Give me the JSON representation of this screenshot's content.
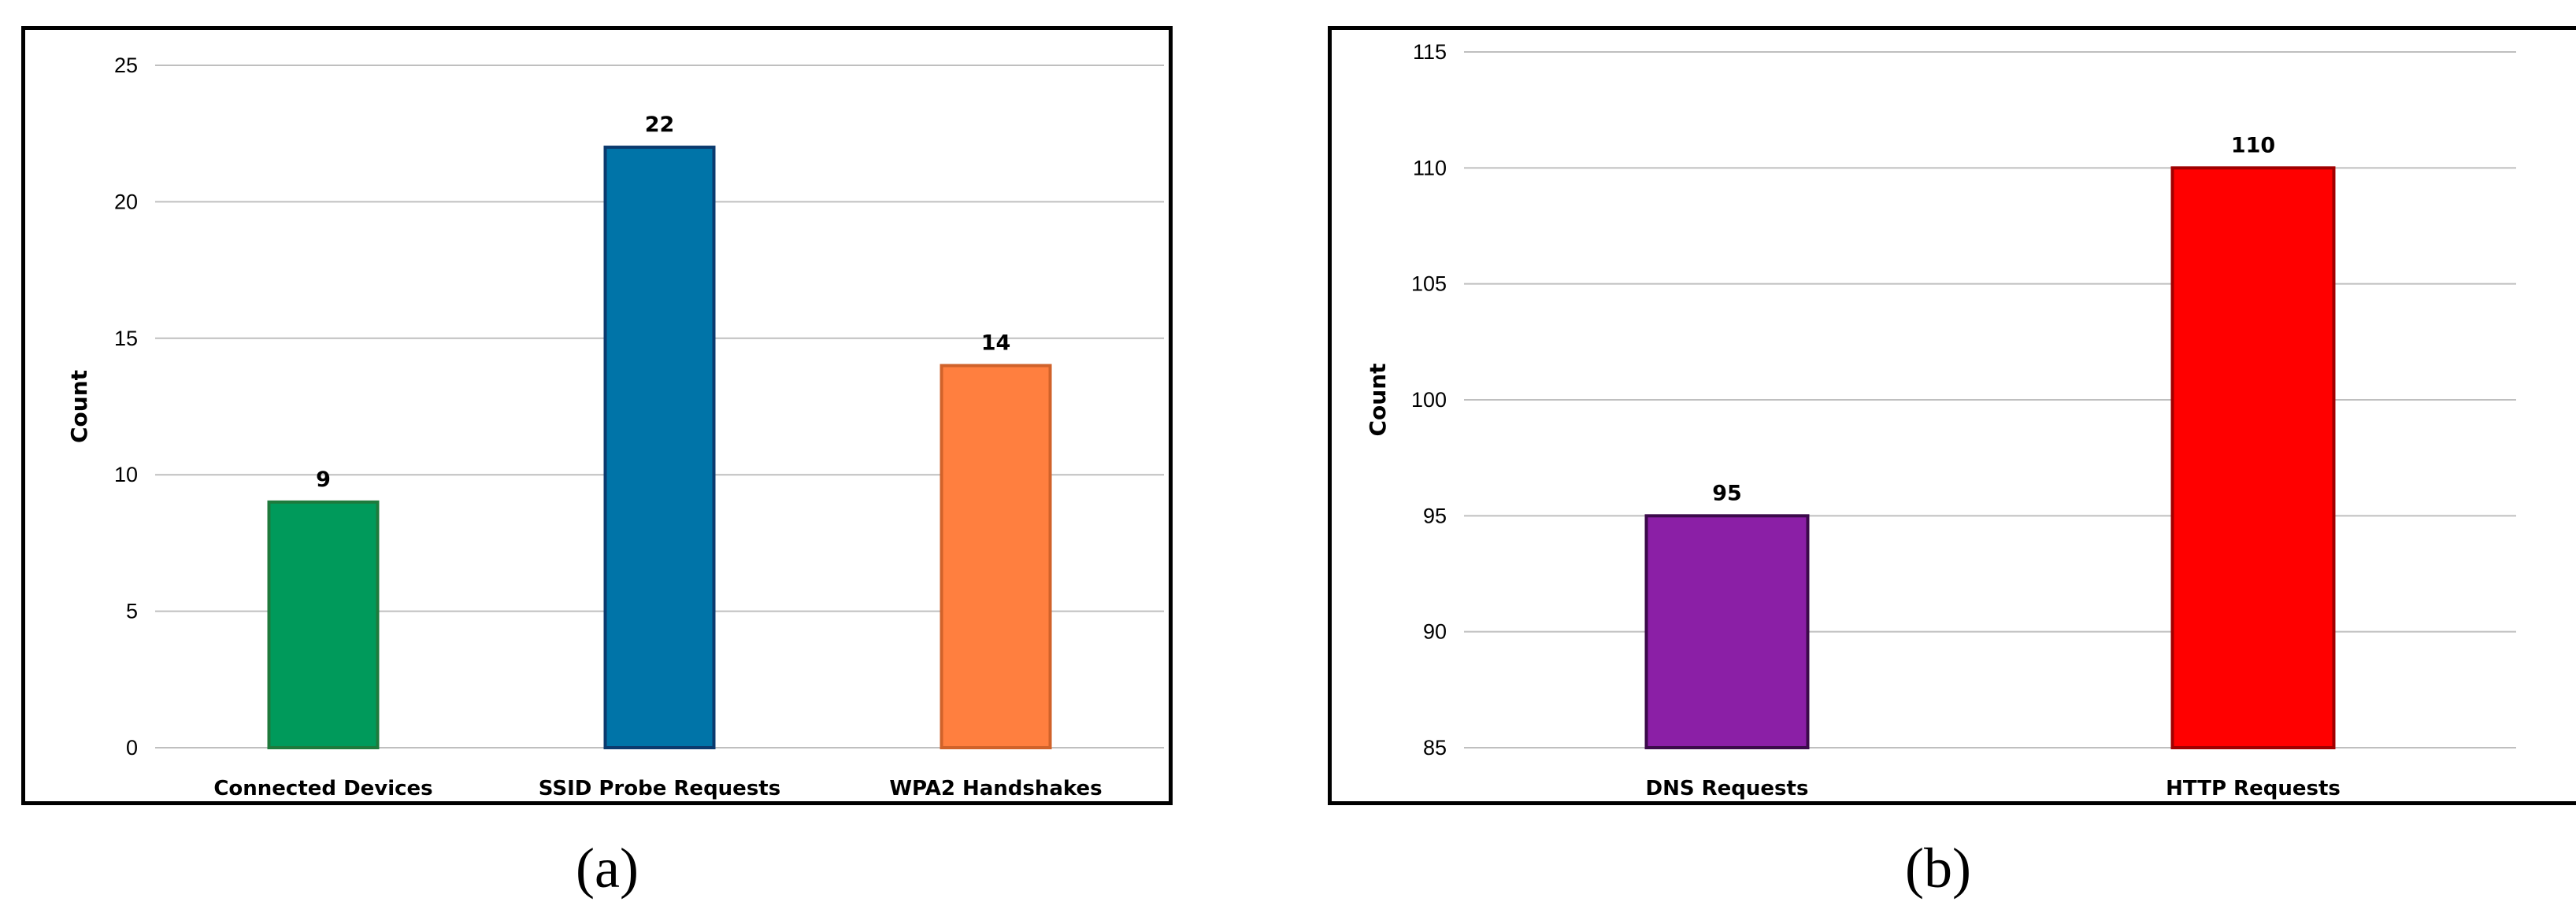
{
  "chart_data": [
    {
      "type": "bar",
      "categories": [
        "Connected Devices",
        "SSID Probe Requests",
        "WPA2 Handshakes"
      ],
      "values": [
        9,
        22,
        14
      ],
      "colors": [
        "#009a5b",
        "#0074a8",
        "#ff7f3f"
      ],
      "edge_colors": [
        "#1e7a3c",
        "#0b3a6e",
        "#d0622a"
      ],
      "xlabel": "",
      "ylabel": "Count",
      "ylim": [
        0,
        25
      ],
      "yticks": [
        0,
        5,
        10,
        15,
        20,
        25
      ],
      "grid": true,
      "caption": "(a)"
    },
    {
      "type": "bar",
      "categories": [
        "DNS Requests",
        "HTTP Requests"
      ],
      "values": [
        95,
        110
      ],
      "colors": [
        "#8b1fa6",
        "#ff0000"
      ],
      "edge_colors": [
        "#3b0a4a",
        "#a00000"
      ],
      "xlabel": "",
      "ylabel": "Count",
      "ylim": [
        85,
        115
      ],
      "yticks": [
        85,
        90,
        95,
        100,
        105,
        110,
        115
      ],
      "grid": true,
      "caption": "(b)"
    }
  ]
}
